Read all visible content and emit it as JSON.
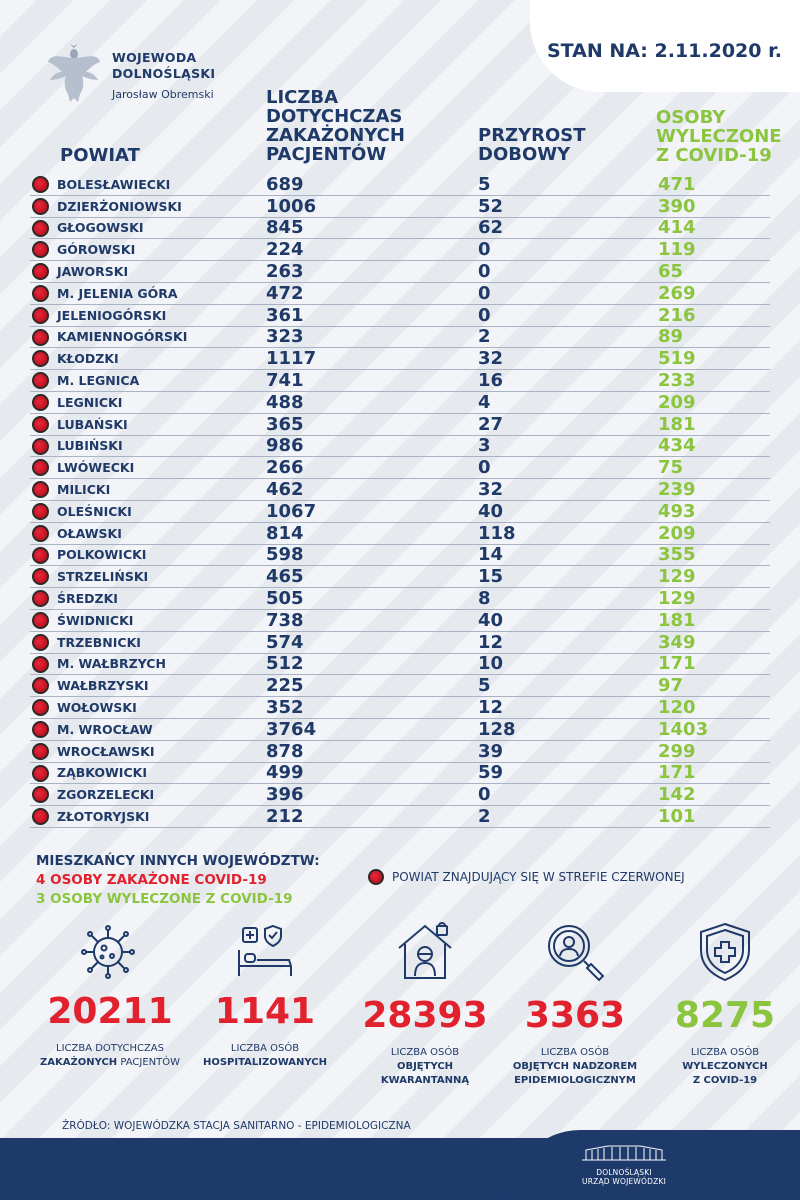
{
  "header": {
    "org_title_line1": "WOJEWODA",
    "org_title_line2": "DOLNOŚLĄSKI",
    "org_person": "Jarosław Obremski",
    "date_label": "STAN NA: 2.11.2020 r."
  },
  "columns": {
    "powiat": "POWIAT",
    "infected": "LICZBA\nDOTYCHCZAS\nZAKAŻONYCH\nPACJENTÓW",
    "daily": "PRZYROST\nDOBOWY",
    "recovered": "OSOBY\nWYLECZONE\nZ COVID-19"
  },
  "rows": [
    {
      "name": "BOLESŁAWIECKI",
      "infected": "689",
      "daily": "5",
      "recovered": "471"
    },
    {
      "name": "DZIERŻONIOWSKI",
      "infected": "1006",
      "daily": "52",
      "recovered": "390"
    },
    {
      "name": "GŁOGOWSKI",
      "infected": "845",
      "daily": "62",
      "recovered": "414"
    },
    {
      "name": "GÓROWSKI",
      "infected": "224",
      "daily": "0",
      "recovered": "119"
    },
    {
      "name": "JAWORSKI",
      "infected": "263",
      "daily": "0",
      "recovered": "65"
    },
    {
      "name": "M. JELENIA GÓRA",
      "infected": "472",
      "daily": "0",
      "recovered": "269"
    },
    {
      "name": "JELENIOGÓRSKI",
      "infected": "361",
      "daily": "0",
      "recovered": "216"
    },
    {
      "name": "KAMIENNOGÓRSKI",
      "infected": "323",
      "daily": "2",
      "recovered": "89"
    },
    {
      "name": "KŁODZKI",
      "infected": "1117",
      "daily": "32",
      "recovered": "519"
    },
    {
      "name": "M. LEGNICA",
      "infected": "741",
      "daily": "16",
      "recovered": "233"
    },
    {
      "name": "LEGNICKI",
      "infected": "488",
      "daily": "4",
      "recovered": "209"
    },
    {
      "name": "LUBAŃSKI",
      "infected": "365",
      "daily": "27",
      "recovered": "181"
    },
    {
      "name": "LUBIŃSKI",
      "infected": "986",
      "daily": "3",
      "recovered": "434"
    },
    {
      "name": "LWÓWECKI",
      "infected": "266",
      "daily": "0",
      "recovered": "75"
    },
    {
      "name": "MILICKI",
      "infected": "462",
      "daily": "32",
      "recovered": "239"
    },
    {
      "name": "OLEŚNICKI",
      "infected": "1067",
      "daily": "40",
      "recovered": "493"
    },
    {
      "name": "OŁAWSKI",
      "infected": "814",
      "daily": "118",
      "recovered": "209"
    },
    {
      "name": "POLKOWICKI",
      "infected": "598",
      "daily": "14",
      "recovered": "355"
    },
    {
      "name": "STRZELIŃSKI",
      "infected": "465",
      "daily": "15",
      "recovered": "129"
    },
    {
      "name": "ŚREDZKI",
      "infected": "505",
      "daily": "8",
      "recovered": "129"
    },
    {
      "name": "ŚWIDNICKI",
      "infected": "738",
      "daily": "40",
      "recovered": "181"
    },
    {
      "name": "TRZEBNICKI",
      "infected": "574",
      "daily": "12",
      "recovered": "349"
    },
    {
      "name": "M. WAŁBRZYCH",
      "infected": "512",
      "daily": "10",
      "recovered": "171"
    },
    {
      "name": "WAŁBRZYSKI",
      "infected": "225",
      "daily": "5",
      "recovered": "97"
    },
    {
      "name": "WOŁOWSKI",
      "infected": "352",
      "daily": "12",
      "recovered": "120"
    },
    {
      "name": "M. WROCŁAW",
      "infected": "3764",
      "daily": "128",
      "recovered": "1403"
    },
    {
      "name": "WROCŁAWSKI",
      "infected": "878",
      "daily": "39",
      "recovered": "299"
    },
    {
      "name": "ZĄBKOWICKI",
      "infected": "499",
      "daily": "59",
      "recovered": "171"
    },
    {
      "name": "ZGORZELECKI",
      "infected": "396",
      "daily": "0",
      "recovered": "142"
    },
    {
      "name": "ZŁOTORYJSKI",
      "infected": "212",
      "daily": "2",
      "recovered": "101"
    }
  ],
  "other_regions": {
    "title": "MIESZKAŃCY INNYCH WOJEWÓDZTW:",
    "infected": "4 OSOBY ZAKAŻONE COVID-19",
    "recovered": "3 OSOBY WYLECZONE Z COVID-19"
  },
  "legend": {
    "text": "POWIAT ZNAJDUJĄCY SIĘ W STREFIE CZERWONEJ",
    "icon": "red-dot-icon"
  },
  "stats": [
    {
      "icon": "virus-icon",
      "value": "20211",
      "label_1": "LICZBA DOTYCHCZAS",
      "label_2_bold": "ZAKAŻONYCH",
      "label_2_rest": " PACJENTÓW"
    },
    {
      "icon": "hospital-bed-icon",
      "value": "1141",
      "label_1": "LICZBA OSÓB",
      "label_2_bold": "HOSPITALIZOWANYCH",
      "label_2_rest": ""
    },
    {
      "icon": "quarantine-icon",
      "value": "28393",
      "label_1": "LICZBA OSÓB",
      "label_2_bold": "OBJĘTYCH",
      "label_3_bold": "KWARANTANNĄ"
    },
    {
      "icon": "magnifier-person-icon",
      "value": "3363",
      "label_1": "LICZBA OSÓB",
      "label_2_bold": "OBJĘTYCH NADZOREM",
      "label_3_bold": "EPIDEMIOLOGICZNYM"
    },
    {
      "icon": "shield-cross-icon",
      "value": "8275",
      "label_1": "LICZBA OSÓB",
      "label_2_bold": "WYLECZONYCH",
      "label_3_bold": "Z COVID-19"
    }
  ],
  "source": "ŹRÓDŁO: WOJEWÓDZKA STACJA SANITARNO - EPIDEMIOLOGICZNA",
  "footer": {
    "line1": "DOLNOŚLĄSKI",
    "line2": "URZĄD WOJEWÓDZKI"
  },
  "colors": {
    "navy": "#1f3a68",
    "green": "#8bc53f",
    "red": "#e1212e"
  }
}
